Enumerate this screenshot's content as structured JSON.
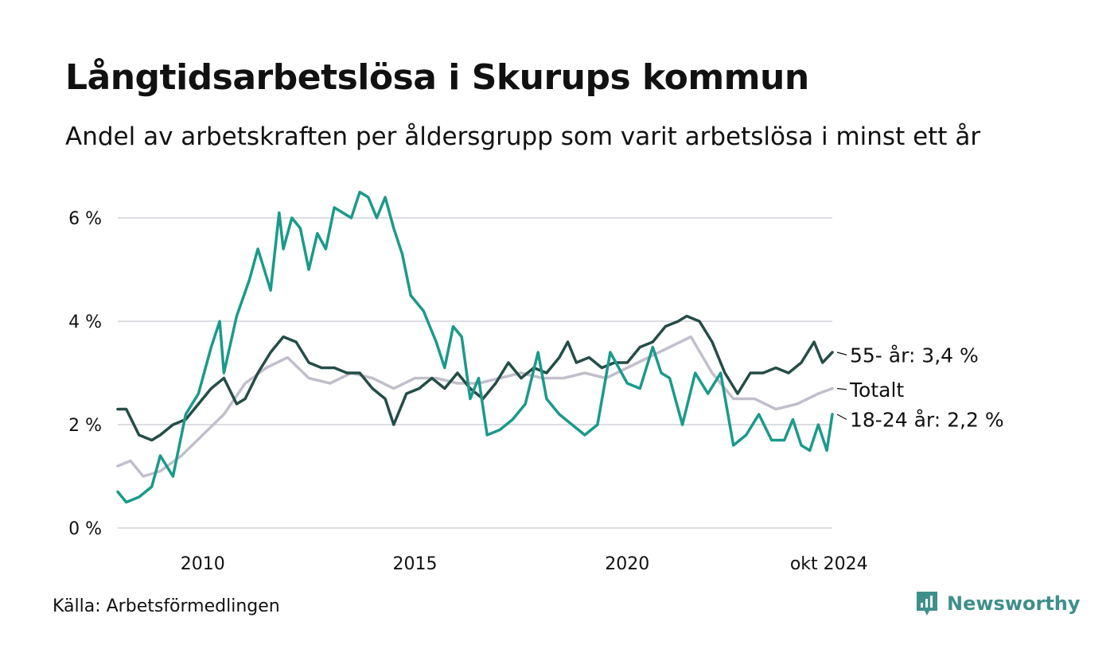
{
  "header": {
    "title": "Långtidsarbetslösa i Skurups kommun",
    "subtitle": "Andel av arbetskraften per åldersgrupp som varit arbetslösa i minst ett år"
  },
  "footer": {
    "source": "Källa: Arbetsförmedlingen",
    "brand": "Newsworthy",
    "brand_icon": "bar-chart-pin-icon",
    "brand_color": "#3f8f8a"
  },
  "chart_data": {
    "type": "line",
    "title": "Långtidsarbetslösa i Skurups kommun",
    "subtitle": "Andel av arbetskraften per åldersgrupp som varit arbetslösa i minst ett år",
    "xlabel": "",
    "ylabel": "",
    "xlim": [
      2008.0,
      2024.83
    ],
    "ylim": [
      0,
      6.6
    ],
    "y_ticks": [
      0,
      2,
      4,
      6
    ],
    "y_tick_labels": [
      "0 %",
      "2 %",
      "4 %",
      "6 %"
    ],
    "x_ticks": [
      2010,
      2015,
      2020,
      2024.75
    ],
    "x_tick_labels": [
      "2010",
      "2015",
      "2020",
      "okt 2024"
    ],
    "grid": true,
    "legend": "direct labels at right end of lines",
    "series": [
      {
        "name": "Totalt",
        "end_label": "Totalt",
        "color": "#c2bfcc",
        "points": [
          [
            2008.0,
            1.2
          ],
          [
            2008.3,
            1.3
          ],
          [
            2008.6,
            1.0
          ],
          [
            2009.0,
            1.1
          ],
          [
            2009.5,
            1.4
          ],
          [
            2010.0,
            1.8
          ],
          [
            2010.5,
            2.2
          ],
          [
            2011.0,
            2.8
          ],
          [
            2011.5,
            3.1
          ],
          [
            2012.0,
            3.3
          ],
          [
            2012.5,
            2.9
          ],
          [
            2013.0,
            2.8
          ],
          [
            2013.5,
            3.0
          ],
          [
            2014.0,
            2.9
          ],
          [
            2014.5,
            2.7
          ],
          [
            2015.0,
            2.9
          ],
          [
            2015.5,
            2.9
          ],
          [
            2016.0,
            2.8
          ],
          [
            2016.5,
            2.8
          ],
          [
            2017.0,
            2.9
          ],
          [
            2017.5,
            3.0
          ],
          [
            2018.0,
            2.9
          ],
          [
            2018.5,
            2.9
          ],
          [
            2019.0,
            3.0
          ],
          [
            2019.5,
            2.9
          ],
          [
            2020.0,
            3.1
          ],
          [
            2020.5,
            3.3
          ],
          [
            2021.0,
            3.5
          ],
          [
            2021.5,
            3.7
          ],
          [
            2022.0,
            3.0
          ],
          [
            2022.5,
            2.5
          ],
          [
            2023.0,
            2.5
          ],
          [
            2023.5,
            2.3
          ],
          [
            2024.0,
            2.4
          ],
          [
            2024.5,
            2.6
          ],
          [
            2024.83,
            2.7
          ]
        ]
      },
      {
        "name": "55- år",
        "end_label": "55- år: 3,4 %",
        "color": "#244d47",
        "points": [
          [
            2008.0,
            2.3
          ],
          [
            2008.2,
            2.3
          ],
          [
            2008.5,
            1.8
          ],
          [
            2008.8,
            1.7
          ],
          [
            2009.0,
            1.8
          ],
          [
            2009.3,
            2.0
          ],
          [
            2009.6,
            2.1
          ],
          [
            2009.9,
            2.4
          ],
          [
            2010.2,
            2.7
          ],
          [
            2010.5,
            2.9
          ],
          [
            2010.8,
            2.4
          ],
          [
            2011.0,
            2.5
          ],
          [
            2011.3,
            3.0
          ],
          [
            2011.6,
            3.4
          ],
          [
            2011.9,
            3.7
          ],
          [
            2012.2,
            3.6
          ],
          [
            2012.5,
            3.2
          ],
          [
            2012.8,
            3.1
          ],
          [
            2013.1,
            3.1
          ],
          [
            2013.4,
            3.0
          ],
          [
            2013.7,
            3.0
          ],
          [
            2014.0,
            2.7
          ],
          [
            2014.3,
            2.5
          ],
          [
            2014.5,
            2.0
          ],
          [
            2014.8,
            2.6
          ],
          [
            2015.1,
            2.7
          ],
          [
            2015.4,
            2.9
          ],
          [
            2015.7,
            2.7
          ],
          [
            2016.0,
            3.0
          ],
          [
            2016.3,
            2.7
          ],
          [
            2016.6,
            2.5
          ],
          [
            2016.9,
            2.8
          ],
          [
            2017.2,
            3.2
          ],
          [
            2017.5,
            2.9
          ],
          [
            2017.8,
            3.1
          ],
          [
            2018.1,
            3.0
          ],
          [
            2018.4,
            3.3
          ],
          [
            2018.6,
            3.6
          ],
          [
            2018.8,
            3.2
          ],
          [
            2019.1,
            3.3
          ],
          [
            2019.4,
            3.1
          ],
          [
            2019.7,
            3.2
          ],
          [
            2020.0,
            3.2
          ],
          [
            2020.3,
            3.5
          ],
          [
            2020.6,
            3.6
          ],
          [
            2020.9,
            3.9
          ],
          [
            2021.2,
            4.0
          ],
          [
            2021.4,
            4.1
          ],
          [
            2021.7,
            4.0
          ],
          [
            2022.0,
            3.6
          ],
          [
            2022.3,
            3.0
          ],
          [
            2022.6,
            2.6
          ],
          [
            2022.9,
            3.0
          ],
          [
            2023.2,
            3.0
          ],
          [
            2023.5,
            3.1
          ],
          [
            2023.8,
            3.0
          ],
          [
            2024.1,
            3.2
          ],
          [
            2024.4,
            3.6
          ],
          [
            2024.6,
            3.2
          ],
          [
            2024.83,
            3.4
          ]
        ]
      },
      {
        "name": "18-24 år",
        "end_label": "18-24 år: 2,2 %",
        "color": "#1a9a8a",
        "points": [
          [
            2008.0,
            0.7
          ],
          [
            2008.2,
            0.5
          ],
          [
            2008.5,
            0.6
          ],
          [
            2008.8,
            0.8
          ],
          [
            2009.0,
            1.4
          ],
          [
            2009.3,
            1.0
          ],
          [
            2009.6,
            2.2
          ],
          [
            2009.9,
            2.6
          ],
          [
            2010.2,
            3.5
          ],
          [
            2010.4,
            4.0
          ],
          [
            2010.5,
            3.0
          ],
          [
            2010.8,
            4.1
          ],
          [
            2011.1,
            4.8
          ],
          [
            2011.3,
            5.4
          ],
          [
            2011.6,
            4.6
          ],
          [
            2011.8,
            6.1
          ],
          [
            2011.9,
            5.4
          ],
          [
            2012.1,
            6.0
          ],
          [
            2012.3,
            5.8
          ],
          [
            2012.5,
            5.0
          ],
          [
            2012.7,
            5.7
          ],
          [
            2012.9,
            5.4
          ],
          [
            2013.1,
            6.2
          ],
          [
            2013.3,
            6.1
          ],
          [
            2013.5,
            6.0
          ],
          [
            2013.7,
            6.5
          ],
          [
            2013.9,
            6.4
          ],
          [
            2014.1,
            6.0
          ],
          [
            2014.3,
            6.4
          ],
          [
            2014.5,
            5.8
          ],
          [
            2014.7,
            5.3
          ],
          [
            2014.9,
            4.5
          ],
          [
            2015.2,
            4.2
          ],
          [
            2015.5,
            3.6
          ],
          [
            2015.7,
            3.1
          ],
          [
            2015.9,
            3.9
          ],
          [
            2016.1,
            3.7
          ],
          [
            2016.3,
            2.5
          ],
          [
            2016.5,
            2.9
          ],
          [
            2016.7,
            1.8
          ],
          [
            2017.0,
            1.9
          ],
          [
            2017.3,
            2.1
          ],
          [
            2017.6,
            2.4
          ],
          [
            2017.9,
            3.4
          ],
          [
            2018.1,
            2.5
          ],
          [
            2018.4,
            2.2
          ],
          [
            2018.7,
            2.0
          ],
          [
            2019.0,
            1.8
          ],
          [
            2019.3,
            2.0
          ],
          [
            2019.6,
            3.4
          ],
          [
            2019.8,
            3.1
          ],
          [
            2020.0,
            2.8
          ],
          [
            2020.3,
            2.7
          ],
          [
            2020.6,
            3.5
          ],
          [
            2020.8,
            3.0
          ],
          [
            2021.0,
            2.9
          ],
          [
            2021.3,
            2.0
          ],
          [
            2021.6,
            3.0
          ],
          [
            2021.9,
            2.6
          ],
          [
            2022.2,
            3.0
          ],
          [
            2022.5,
            1.6
          ],
          [
            2022.8,
            1.8
          ],
          [
            2023.1,
            2.2
          ],
          [
            2023.4,
            1.7
          ],
          [
            2023.7,
            1.7
          ],
          [
            2023.9,
            2.1
          ],
          [
            2024.1,
            1.6
          ],
          [
            2024.3,
            1.5
          ],
          [
            2024.5,
            2.0
          ],
          [
            2024.7,
            1.5
          ],
          [
            2024.83,
            2.2
          ]
        ]
      }
    ]
  }
}
